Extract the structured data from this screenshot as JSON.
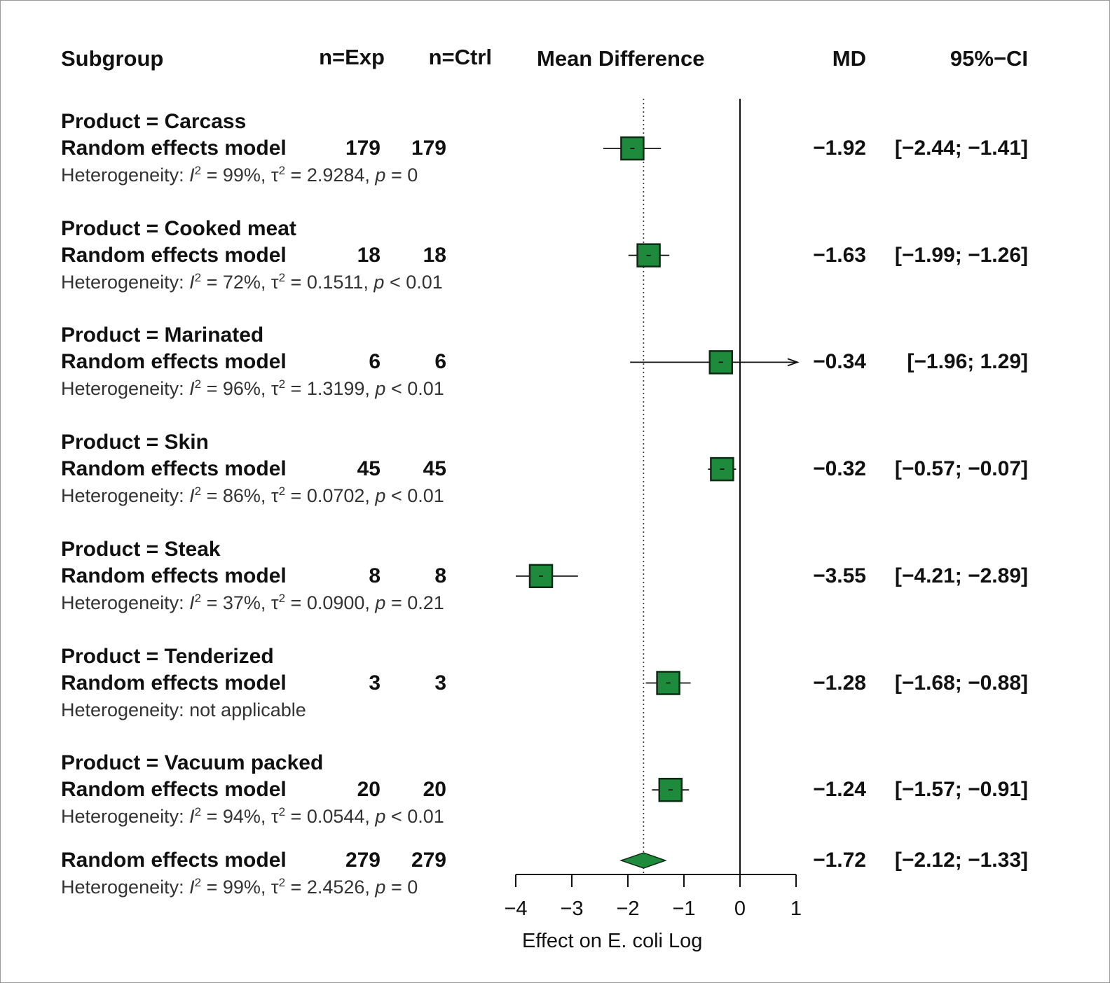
{
  "chart_data": {
    "type": "forest",
    "title": "",
    "columns": {
      "subgroup": "Subgroup",
      "n_exp": "n=Exp",
      "n_ctrl": "n=Ctrl",
      "effect": "Mean Difference",
      "md": "MD",
      "ci": "95%−CI"
    },
    "subgroups": [
      {
        "label": "Product = Carcass",
        "model": "Random effects model",
        "n_exp": "179",
        "n_ctrl": "179",
        "md": -1.92,
        "lower": -2.44,
        "upper": -1.41,
        "md_text": "−1.92",
        "ci_text": "[−2.44; −1.41]",
        "het_prefix": "Heterogeneity: ",
        "het_i2": "I",
        "het_rest1": " = 99%, τ",
        "het_rest2": " = 2.9284, ",
        "het_p": "p",
        "het_rest3": " = 0",
        "box_size": 1.0
      },
      {
        "label": "Product = Cooked meat",
        "model": "Random effects model",
        "n_exp": "18",
        "n_ctrl": "18",
        "md": -1.63,
        "lower": -1.99,
        "upper": -1.26,
        "md_text": "−1.63",
        "ci_text": "[−1.99; −1.26]",
        "het_prefix": "Heterogeneity: ",
        "het_i2": "I",
        "het_rest1": " = 72%, τ",
        "het_rest2": " = 0.1511, ",
        "het_p": "p",
        "het_rest3": " < 0.01",
        "box_size": 1.0
      },
      {
        "label": "Product = Marinated",
        "model": "Random effects model",
        "n_exp": "6",
        "n_ctrl": "6",
        "md": -0.34,
        "lower": -1.96,
        "upper": 1.29,
        "md_text": "−0.34",
        "ci_text": "[−1.96;  1.29]",
        "het_prefix": "Heterogeneity: ",
        "het_i2": "I",
        "het_rest1": " = 96%, τ",
        "het_rest2": " = 1.3199, ",
        "het_p": "p",
        "het_rest3": " < 0.01",
        "box_size": 1.0
      },
      {
        "label": "Product = Skin",
        "model": "Random effects model",
        "n_exp": "45",
        "n_ctrl": "45",
        "md": -0.32,
        "lower": -0.57,
        "upper": -0.07,
        "md_text": "−0.32",
        "ci_text": "[−0.57; −0.07]",
        "het_prefix": "Heterogeneity: ",
        "het_i2": "I",
        "het_rest1": " = 86%, τ",
        "het_rest2": " = 0.0702, ",
        "het_p": "p",
        "het_rest3": " < 0.01",
        "box_size": 1.0
      },
      {
        "label": "Product = Steak",
        "model": "Random effects model",
        "n_exp": "8",
        "n_ctrl": "8",
        "md": -3.55,
        "lower": -4.21,
        "upper": -2.89,
        "md_text": "−3.55",
        "ci_text": "[−4.21; −2.89]",
        "het_prefix": "Heterogeneity: ",
        "het_i2": "I",
        "het_rest1": " = 37%, τ",
        "het_rest2": " = 0.0900, ",
        "het_p": "p",
        "het_rest3": " = 0.21",
        "box_size": 1.0
      },
      {
        "label": "Product = Tenderized",
        "model": "Random effects model",
        "n_exp": "3",
        "n_ctrl": "3",
        "md": -1.28,
        "lower": -1.68,
        "upper": -0.88,
        "md_text": "−1.28",
        "ci_text": "[−1.68; −0.88]",
        "het_text": "Heterogeneity: not applicable",
        "box_size": 1.0
      },
      {
        "label": "Product = Vacuum packed",
        "model": "Random effects model",
        "n_exp": "20",
        "n_ctrl": "20",
        "md": -1.24,
        "lower": -1.57,
        "upper": -0.91,
        "md_text": "−1.24",
        "ci_text": "[−1.57; −0.91]",
        "het_prefix": "Heterogeneity: ",
        "het_i2": "I",
        "het_rest1": " = 94%, τ",
        "het_rest2": " = 0.0544, ",
        "het_p": "p",
        "het_rest3": " < 0.01",
        "box_size": 1.0
      }
    ],
    "overall": {
      "model": "Random effects model",
      "n_exp": "279",
      "n_ctrl": "279",
      "md": -1.72,
      "lower": -2.12,
      "upper": -1.33,
      "md_text": "−1.72",
      "ci_text": "[−2.12; −1.33]",
      "het_prefix": "Heterogeneity: ",
      "het_i2": "I",
      "het_rest1": " = 99%, τ",
      "het_rest2": " = 2.4526, ",
      "het_p": "p",
      "het_rest3": " = 0"
    },
    "xlim": [
      -4,
      1
    ],
    "xticks": [
      -4,
      -3,
      -2,
      -1,
      0,
      1
    ],
    "xtick_labels": [
      "−4",
      "−3",
      "−2",
      "−1",
      "0",
      "1"
    ],
    "xlabel": "Effect on E. coli Log",
    "reference_line": 0,
    "overall_line": -1.72,
    "box_color": "#1e8a3c",
    "line_color": "#111111"
  }
}
